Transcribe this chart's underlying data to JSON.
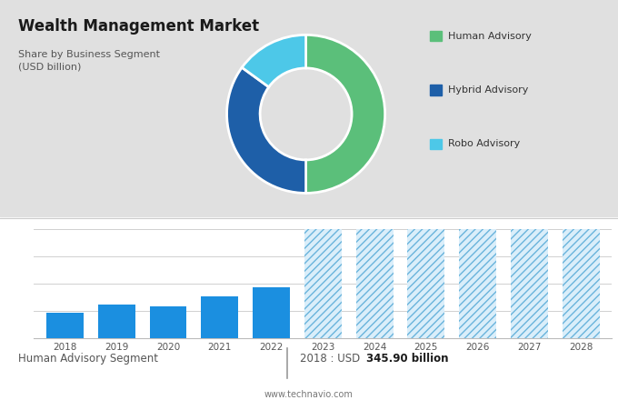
{
  "title": "Wealth Management Market",
  "subtitle": "Share by Business Segment\n(USD billion)",
  "bg_color_top": "#e0e0e0",
  "bg_color_bottom": "#ffffff",
  "donut_segments": [
    {
      "label": "Human Advisory",
      "value": 50,
      "color": "#5bbf7a"
    },
    {
      "label": "Hybrid Advisory",
      "value": 35,
      "color": "#1e5fa8"
    },
    {
      "label": "Robo Advisory",
      "value": 15,
      "color": "#4dc8e8"
    }
  ],
  "legend_colors": [
    "#5bbf7a",
    "#1e5fa8",
    "#4dc8e8"
  ],
  "legend_labels": [
    "Human Advisory",
    "Hybrid Advisory",
    "Robo Advisory"
  ],
  "bar_years_solid": [
    2018,
    2019,
    2020,
    2021,
    2022
  ],
  "bar_values_solid": [
    345.9,
    362,
    358,
    376,
    393
  ],
  "bar_years_hatched": [
    2023,
    2024,
    2025,
    2026,
    2027,
    2028
  ],
  "bar_values_hatched": [
    500,
    500,
    500,
    500,
    500,
    500
  ],
  "bar_color_solid": "#1b8fe0",
  "bar_color_hatched_face": "#daeefa",
  "bar_color_hatched_edge": "#6ab4dc",
  "footer_left": "Human Advisory Segment",
  "footer_right": "2018 : USD ",
  "footer_bold": "345.90 billion",
  "footer_url": "www.technavio.com",
  "bar_ylim_min": 300,
  "bar_ylim_max": 510,
  "grid_lines": [
    300,
    350,
    400,
    450,
    500
  ]
}
